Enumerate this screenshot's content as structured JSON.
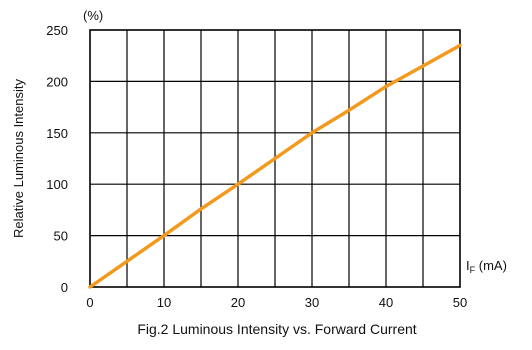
{
  "chart_data": {
    "type": "line",
    "title": "Fig.2 Luminous Intensity vs. Forward Current",
    "xlabel_main": "I",
    "xlabel_sub": "F",
    "xlabel_unit": " (mA)",
    "ylabel": "Relative Luminous Intensity",
    "yunit": "(%)",
    "xlim": [
      0,
      50
    ],
    "ylim": [
      0,
      250
    ],
    "x_ticks": [
      "0",
      "10",
      "20",
      "30",
      "40",
      "50"
    ],
    "y_ticks": [
      "0",
      "50",
      "100",
      "150",
      "200",
      "250"
    ],
    "grid": true,
    "series": [
      {
        "color": "#f39a1e",
        "x": [
          0,
          5,
          10,
          15,
          20,
          25,
          30,
          35,
          40,
          45,
          50
        ],
        "y": [
          0,
          25,
          50,
          76,
          100,
          125,
          150,
          172,
          195,
          215,
          235
        ]
      }
    ]
  }
}
